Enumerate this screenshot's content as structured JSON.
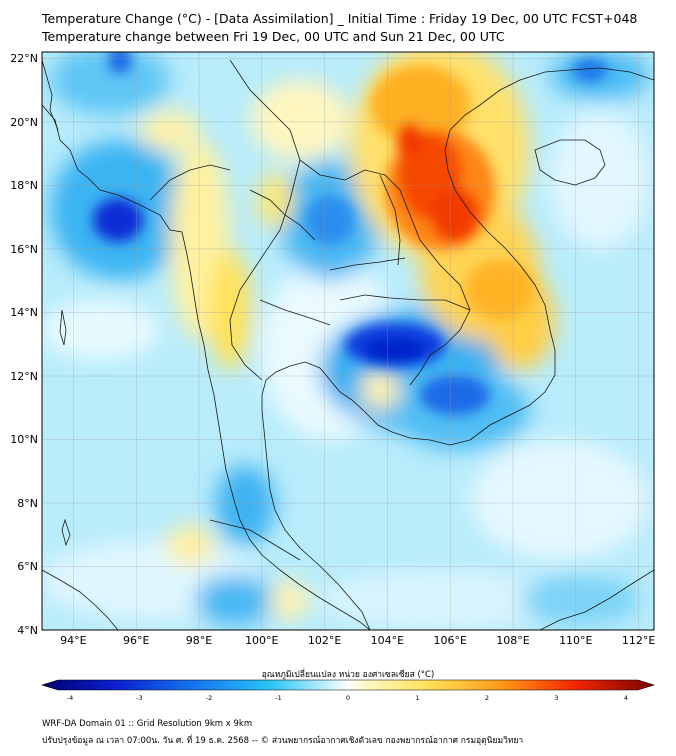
{
  "title_line1": "Temperature Change (°C) - [Data Assimilation] _ Initial Time : Friday 19 Dec, 00 UTC FCST+048",
  "title_line2": "Temperature change between Fri 19 Dec, 00 UTC and Sun 21 Dec, 00 UTC",
  "map": {
    "lon_range": [
      93,
      112.5
    ],
    "lat_range": [
      4,
      22.2
    ],
    "lon_ticks": [
      "94°E",
      "96°E",
      "98°E",
      "100°E",
      "102°E",
      "104°E",
      "106°E",
      "108°E",
      "110°E",
      "112°E"
    ],
    "lat_ticks": [
      "22°N",
      "20°N",
      "18°N",
      "16°N",
      "14°N",
      "12°N",
      "10°N",
      "8°N",
      "6°N",
      "4°N"
    ],
    "warm_areas": [
      {
        "label": "strong-warming-laos-vietnam",
        "lon": 105.5,
        "lat": 18.3,
        "value": 2.6
      },
      {
        "label": "warming-north-vietnam",
        "lon": 104.8,
        "lat": 20.8,
        "value": 2.0
      },
      {
        "label": "warming-central-vietnam",
        "lon": 107.8,
        "lat": 14.8,
        "value": 1.8
      },
      {
        "label": "warming-myanmar-west",
        "lon": 98.0,
        "lat": 17.0,
        "value": 1.0
      },
      {
        "label": "warming-south-thai",
        "lon": 98.8,
        "lat": 6.7,
        "value": 1.0
      }
    ],
    "cool_areas": [
      {
        "label": "strong-cooling-andaman",
        "lon": 95.2,
        "lat": 16.7,
        "value": -3.0
      },
      {
        "label": "cooling-cambodia",
        "lon": 104.7,
        "lat": 12.9,
        "value": -2.8
      },
      {
        "label": "cooling-north-bay",
        "lon": 95.5,
        "lat": 21.7,
        "value": -2.0
      },
      {
        "label": "cooling-south-china-coast",
        "lon": 110.5,
        "lat": 21.5,
        "value": -2.0
      }
    ]
  },
  "colorbar": {
    "label": "อุณหภูมิเปลี่ยนแปลง หน่วย องศาเซลเซียส (°C)",
    "ticks": [
      "-4",
      "-3",
      "-2",
      "-1",
      "0",
      "1",
      "2",
      "3",
      "4"
    ],
    "min": -4,
    "max": 4
  },
  "footer_line1": "WRF-DA Domain 01 :: Grid Resolution 9km x 9km",
  "footer_line2": "ปรับปรุงข้อมูล ณ เวลา 07:00น. วัน ศ. ที่ 19 ธ.ค. 2568 -- © ส่วนพยากรณ์อากาศเชิงตัวเลข กองพยากรณ์อากาศ กรมอุตุนิยมวิทยา",
  "colors": {
    "strong_cool": "#0a2fd6",
    "cool": "#1fa0f0",
    "light_cool": "#b8ecfb",
    "neutral": "#ffffff",
    "warm": "#ffe863",
    "hot": "#ff9d1a",
    "very_hot": "#f22a00"
  }
}
